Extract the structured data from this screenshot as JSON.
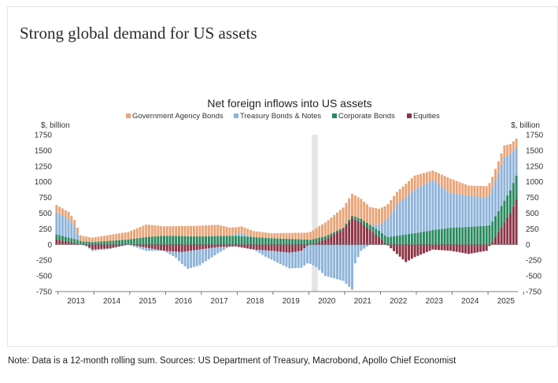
{
  "headline": "Strong global demand for US assets",
  "note": "Note: Data is a 12-month rolling sum. Sources: US Department of Treasury, Macrobond, Apollo Chief Economist",
  "chart_data": {
    "type": "bar",
    "stacked": true,
    "title": "Net foreign inflows into US assets",
    "ylabel_left": "$, billion",
    "ylabel_right": "$, billion",
    "ylim": [
      -750,
      1750
    ],
    "yticks": [
      -750,
      -500,
      -250,
      0,
      250,
      500,
      750,
      1000,
      1250,
      1500,
      1750
    ],
    "x_tick_labels": [
      "2013",
      "2014",
      "2015",
      "2016",
      "2017",
      "2018",
      "2019",
      "2020",
      "2021",
      "2022",
      "2023",
      "2024",
      "2025"
    ],
    "x_start": "2012-12",
    "grid": false,
    "legend_position": "top",
    "shaded_period": {
      "start": "2020-02",
      "end": "2020-03"
    },
    "colors": {
      "Government Agency Bonds": "#e9a477",
      "Treasury Bonds & Notes": "#8db3d9",
      "Corporate Bonds": "#2a8a60",
      "Equities": "#8c3345",
      "shade": "#e6e6e6"
    },
    "series_knots": [
      {
        "name": "Government Agency Bonds",
        "points": [
          [
            0,
            120
          ],
          [
            6,
            100
          ],
          [
            12,
            70
          ],
          [
            24,
            120
          ],
          [
            30,
            200
          ],
          [
            36,
            150
          ],
          [
            48,
            170
          ],
          [
            54,
            180
          ],
          [
            60,
            110
          ],
          [
            72,
            80
          ],
          [
            84,
            110
          ],
          [
            90,
            220
          ],
          [
            96,
            320
          ],
          [
            99,
            350
          ],
          [
            108,
            250
          ],
          [
            114,
            200
          ],
          [
            120,
            220
          ],
          [
            126,
            150
          ],
          [
            132,
            230
          ],
          [
            138,
            160
          ],
          [
            144,
            180
          ],
          [
            150,
            180
          ],
          [
            154,
            140
          ]
        ]
      },
      {
        "name": "Treasury Bonds & Notes",
        "points": [
          [
            0,
            350
          ],
          [
            4,
            300
          ],
          [
            6,
            200
          ],
          [
            8,
            0
          ],
          [
            12,
            -20
          ],
          [
            24,
            0
          ],
          [
            30,
            -50
          ],
          [
            36,
            0
          ],
          [
            40,
            -100
          ],
          [
            44,
            -280
          ],
          [
            48,
            -250
          ],
          [
            54,
            -100
          ],
          [
            58,
            0
          ],
          [
            62,
            50
          ],
          [
            66,
            0
          ],
          [
            70,
            -100
          ],
          [
            74,
            -180
          ],
          [
            78,
            -250
          ],
          [
            84,
            -280
          ],
          [
            87,
            -360
          ],
          [
            90,
            -500
          ],
          [
            96,
            -580
          ],
          [
            99,
            -720
          ],
          [
            100,
            -300
          ],
          [
            102,
            -100
          ],
          [
            108,
            100
          ],
          [
            114,
            500
          ],
          [
            120,
            700
          ],
          [
            126,
            800
          ],
          [
            132,
            550
          ],
          [
            138,
            500
          ],
          [
            144,
            450
          ],
          [
            150,
            700
          ],
          [
            154,
            450
          ]
        ]
      },
      {
        "name": "Corporate Bonds",
        "points": [
          [
            0,
            80
          ],
          [
            6,
            60
          ],
          [
            12,
            40
          ],
          [
            24,
            80
          ],
          [
            30,
            120
          ],
          [
            36,
            140
          ],
          [
            48,
            130
          ],
          [
            60,
            140
          ],
          [
            72,
            100
          ],
          [
            84,
            80
          ],
          [
            90,
            50
          ],
          [
            96,
            20
          ],
          [
            102,
            60
          ],
          [
            108,
            100
          ],
          [
            114,
            140
          ],
          [
            120,
            180
          ],
          [
            126,
            230
          ],
          [
            132,
            270
          ],
          [
            138,
            280
          ],
          [
            144,
            300
          ],
          [
            150,
            350
          ],
          [
            154,
            380
          ]
        ]
      },
      {
        "name": "Equities",
        "points": [
          [
            0,
            80
          ],
          [
            6,
            30
          ],
          [
            10,
            -20
          ],
          [
            12,
            -80
          ],
          [
            18,
            -60
          ],
          [
            24,
            0
          ],
          [
            30,
            -50
          ],
          [
            36,
            -100
          ],
          [
            42,
            -120
          ],
          [
            48,
            -80
          ],
          [
            54,
            -40
          ],
          [
            60,
            -30
          ],
          [
            66,
            -80
          ],
          [
            72,
            -100
          ],
          [
            78,
            -130
          ],
          [
            82,
            -100
          ],
          [
            84,
            -20
          ],
          [
            88,
            50
          ],
          [
            90,
            80
          ],
          [
            96,
            250
          ],
          [
            99,
            420
          ],
          [
            102,
            350
          ],
          [
            108,
            120
          ],
          [
            114,
            -150
          ],
          [
            117,
            -280
          ],
          [
            120,
            -200
          ],
          [
            126,
            -80
          ],
          [
            132,
            -100
          ],
          [
            138,
            -150
          ],
          [
            144,
            -100
          ],
          [
            148,
            200
          ],
          [
            152,
            500
          ],
          [
            154,
            720
          ]
        ]
      }
    ],
    "legend": [
      "Government Agency Bonds",
      "Treasury Bonds & Notes",
      "Corporate Bonds",
      "Equities"
    ]
  }
}
